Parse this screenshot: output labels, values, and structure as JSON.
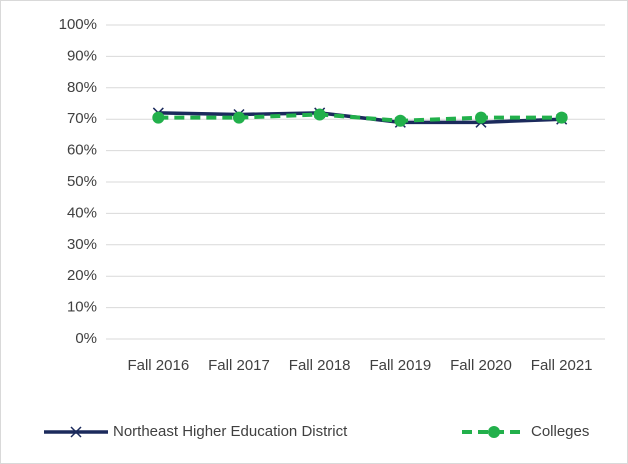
{
  "chart_data": {
    "type": "line",
    "categories": [
      "Fall 2016",
      "Fall 2017",
      "Fall 2018",
      "Fall 2019",
      "Fall 2020",
      "Fall 2021"
    ],
    "series": [
      {
        "name": "Northeast Higher Education District",
        "color": "#1b2a5c",
        "values": [
          72,
          71.5,
          72,
          69,
          69,
          70
        ]
      },
      {
        "name": "Colleges",
        "color": "#22b04b",
        "values": [
          70.5,
          70.5,
          71.5,
          69.5,
          70.5,
          70.5
        ]
      }
    ],
    "ylim": [
      0,
      100
    ],
    "yticks": [
      {
        "value": 0,
        "label": "0%"
      },
      {
        "value": 10,
        "label": "10%"
      },
      {
        "value": 20,
        "label": "20%"
      },
      {
        "value": 30,
        "label": "30%"
      },
      {
        "value": 40,
        "label": "40%"
      },
      {
        "value": 50,
        "label": "50%"
      },
      {
        "value": 60,
        "label": "60%"
      },
      {
        "value": 70,
        "label": "70%"
      },
      {
        "value": 80,
        "label": "80%"
      },
      {
        "value": 90,
        "label": "90%"
      },
      {
        "value": 100,
        "label": "100%"
      }
    ],
    "grid": true,
    "legend": "bottom"
  }
}
